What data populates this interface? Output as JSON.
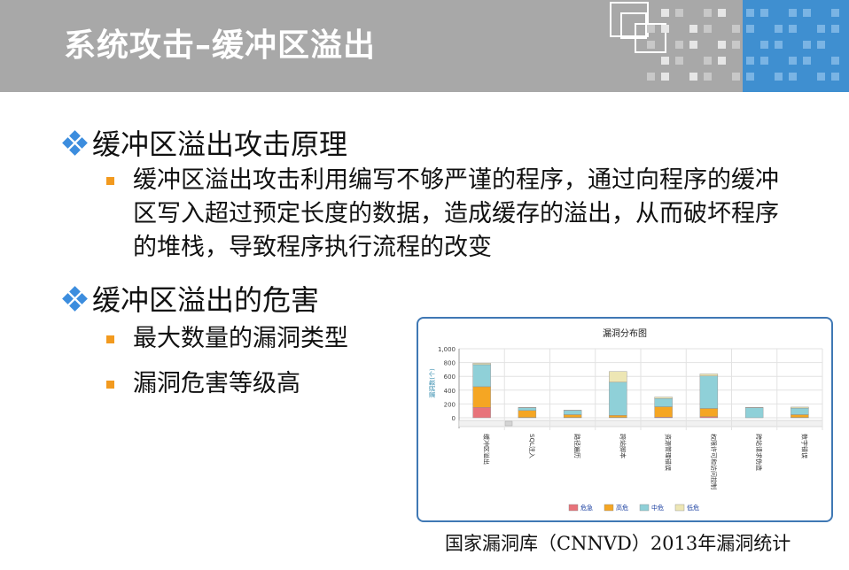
{
  "header": {
    "title": "系统攻击–缓冲区溢出"
  },
  "content": {
    "section1": {
      "heading": "缓冲区溢出攻击原理",
      "text": "缓冲区溢出攻击利用编写不够严谨的程序，通过向程序的缓冲区写入超过预定长度的数据，造成缓存的溢出，从而破坏程序的堆栈，导致程序执行流程的改变"
    },
    "section2": {
      "heading": "缓冲区溢出的危害",
      "items": [
        "最大数量的漏洞类型",
        "漏洞危害等级高"
      ]
    }
  },
  "caption": "国家漏洞库（CNNVD）2013年漏洞统计",
  "colors": {
    "header_gray": "#a8a8a8",
    "header_blue": "#3f8fd0",
    "bullet_blue": "#3c8dde",
    "bullet_orange": "#f29a1f",
    "chart_border": "#3f78b4"
  },
  "chart_data": {
    "type": "bar",
    "stacked": true,
    "title": "漏洞分布图",
    "ylabel": "漏洞数(个)",
    "ylim": [
      0,
      1000
    ],
    "yticks": [
      "0",
      "200",
      "400",
      "600",
      "800",
      "1,000"
    ],
    "categories": [
      "缓冲区溢出",
      "SQL注入",
      "路径遍历",
      "跨站脚本",
      "资源管理错误",
      "权限许可和访问控制",
      "跨站请求伪造",
      "数字错误"
    ],
    "series": [
      {
        "name": "危急",
        "color": "#e8737a",
        "values": [
          150,
          5,
          5,
          5,
          10,
          15,
          0,
          5
        ]
      },
      {
        "name": "高危",
        "color": "#f5a623",
        "values": [
          300,
          100,
          40,
          30,
          150,
          120,
          0,
          40
        ]
      },
      {
        "name": "中危",
        "color": "#8fd0d8",
        "values": [
          320,
          40,
          60,
          480,
          120,
          470,
          145,
          95
        ]
      },
      {
        "name": "低危",
        "color": "#ede6b4",
        "values": [
          20,
          5,
          5,
          155,
          20,
          30,
          5,
          15
        ]
      }
    ],
    "legend_position": "bottom",
    "grid": true
  }
}
